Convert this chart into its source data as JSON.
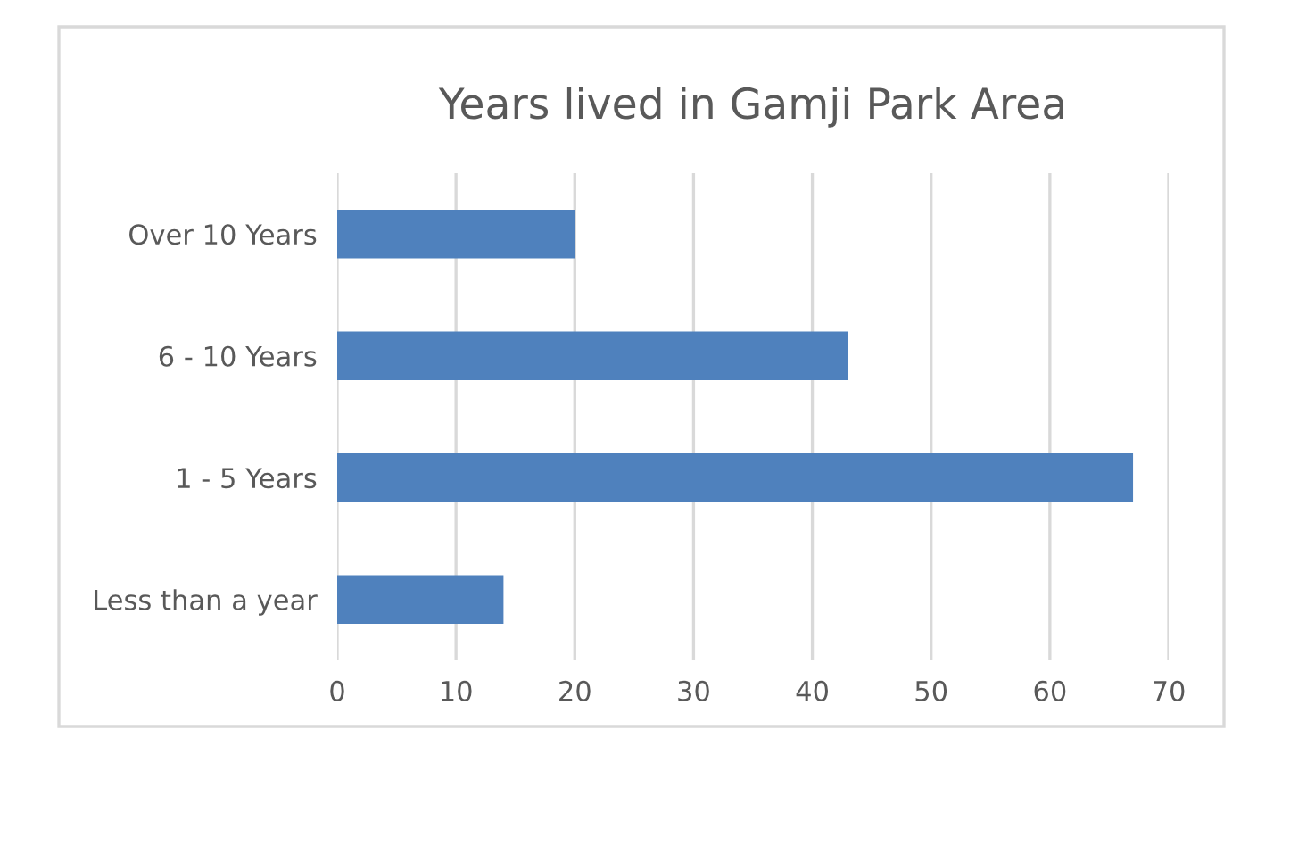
{
  "chart_data": {
    "type": "bar",
    "orientation": "horizontal",
    "title": "Years lived in Gamji Park Area",
    "categories": [
      "Over 10 Years",
      "6 - 10 Years",
      "1 - 5 Years",
      "Less than a year"
    ],
    "values": [
      20,
      43,
      67,
      14
    ],
    "color": "#4f81bd",
    "xlim": [
      0,
      70
    ],
    "xticks": [
      0,
      10,
      20,
      30,
      40,
      50,
      60,
      70
    ],
    "grid": "x",
    "legend": false
  }
}
